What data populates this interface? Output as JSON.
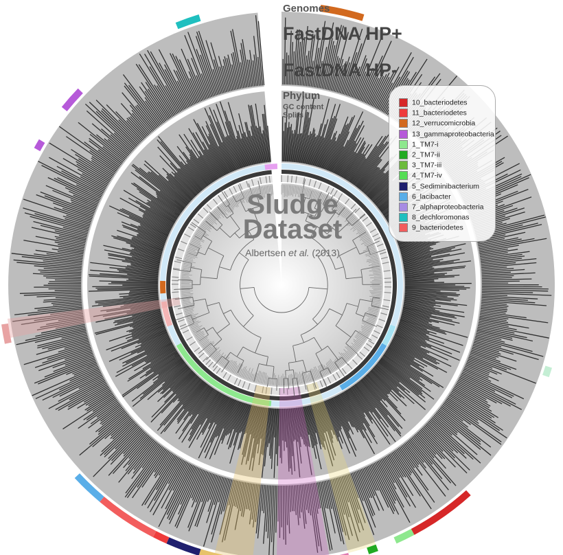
{
  "layers": {
    "genomes": "Genomes",
    "hp_plus": "FastDNA HP+",
    "hp_minus": "FastDNA HP-",
    "phylum": "Phylum",
    "gc_content": "GC content",
    "splits": "Splits"
  },
  "title": {
    "line1": "Sludge",
    "line2": "Dataset",
    "citation_pre": "Albertsen ",
    "citation_it": "et al.",
    "citation_post": " (2013)"
  },
  "legend": [
    {
      "label": "10_bacteriodetes",
      "color": "#d62728"
    },
    {
      "label": "11_bacteriodetes",
      "color": "#ee3b3b"
    },
    {
      "label": "12_verrucomicrobia",
      "color": "#d2691e"
    },
    {
      "label": "13_gammaproteobacteria",
      "color": "#b65ad9"
    },
    {
      "label": "1_TM7-i",
      "color": "#8ee88e"
    },
    {
      "label": "2_TM7-ii",
      "color": "#22aa22"
    },
    {
      "label": "3_TM7-iii",
      "color": "#6cbb3c"
    },
    {
      "label": "4_TM7-iv",
      "color": "#55dd55"
    },
    {
      "label": "5_Sediminibacterium",
      "color": "#1f1f6e"
    },
    {
      "label": "6_lacibacter",
      "color": "#5aaee8"
    },
    {
      "label": "7_alphaproteobacteria",
      "color": "#a78be3"
    },
    {
      "label": "8_dechloromonas",
      "color": "#1fbfbf"
    },
    {
      "label": "9_bacteriodetes",
      "color": "#f25d5d"
    }
  ]
}
